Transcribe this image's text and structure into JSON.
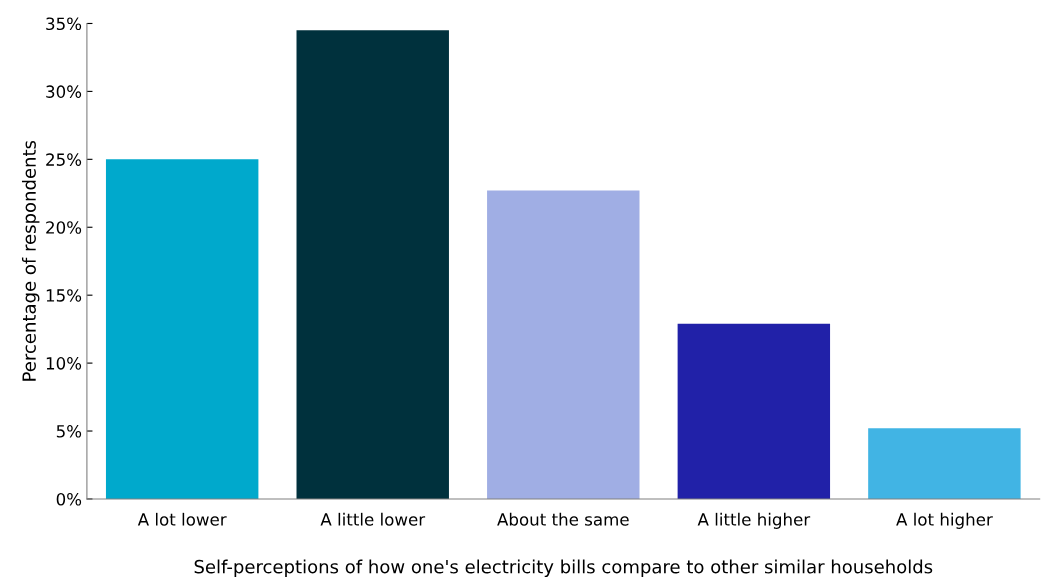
{
  "chart_data": {
    "type": "bar",
    "xlabel": "Self-perceptions of how one's electricity bills compare to other similar households",
    "ylabel": "Percentage of respondents",
    "categories": [
      "A lot lower",
      "A little lower",
      "About the same",
      "A little higher",
      "A lot higher"
    ],
    "values": [
      25.0,
      34.5,
      22.7,
      12.9,
      5.2
    ],
    "colors": [
      "#00a9cc",
      "#00313d",
      "#a0aee4",
      "#2121a8",
      "#41b4e4"
    ],
    "ylim": [
      0,
      35
    ],
    "yticks": [
      {
        "value": 0,
        "label": "0%"
      },
      {
        "value": 5,
        "label": "5%"
      },
      {
        "value": 10,
        "label": "10%"
      },
      {
        "value": 15,
        "label": "15%"
      },
      {
        "value": 20,
        "label": "20%"
      },
      {
        "value": 25,
        "label": "25%"
      },
      {
        "value": 30,
        "label": "30%"
      },
      {
        "value": 35,
        "label": "35%"
      }
    ],
    "grid": false,
    "legend": false
  }
}
